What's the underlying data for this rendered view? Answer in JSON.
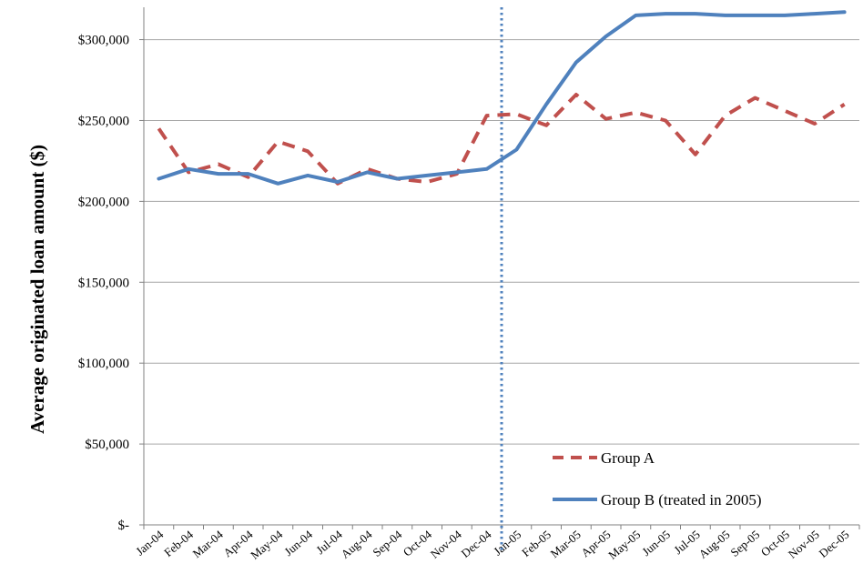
{
  "chart_data": {
    "type": "line",
    "title": "",
    "xlabel": "",
    "ylabel": "Average originated loan amount ($)",
    "categories": [
      "Jan-04",
      "Feb-04",
      "Mar-04",
      "Apr-04",
      "May-04",
      "Jun-04",
      "Jul-04",
      "Aug-04",
      "Sep-04",
      "Oct-04",
      "Nov-04",
      "Dec-04",
      "Jan-05",
      "Feb-05",
      "Mar-05",
      "Apr-05",
      "May-05",
      "Jun-05",
      "Jul-05",
      "Aug-05",
      "Sep-05",
      "Oct-05",
      "Nov-05",
      "Dec-05"
    ],
    "ylim": [
      0,
      320000
    ],
    "yticks": [
      0,
      50000,
      100000,
      150000,
      200000,
      250000,
      300000
    ],
    "ytick_labels": [
      "$-",
      "$50,000",
      "$100,000",
      "$150,000",
      "$200,000",
      "$250,000",
      "$300,000"
    ],
    "grid": "horizontal",
    "legend": "bottom-right",
    "vline_at": "Jan-05",
    "series": [
      {
        "name": "Group A",
        "style": "dashed",
        "color": "#c0504d",
        "values": [
          245000,
          218000,
          223000,
          215000,
          237000,
          231000,
          211000,
          220000,
          214000,
          212000,
          217000,
          253000,
          254000,
          247000,
          266000,
          251000,
          255000,
          250000,
          229000,
          253000,
          264000,
          256000,
          248000,
          260000
        ]
      },
      {
        "name": "Group B (treated in 2005)",
        "style": "solid",
        "color": "#4f81bd",
        "values": [
          214000,
          220000,
          217000,
          217000,
          211000,
          216000,
          212000,
          218000,
          214000,
          216000,
          218000,
          220000,
          232000,
          260000,
          286000,
          302000,
          315000,
          316000,
          316000,
          315000,
          315000,
          315000,
          316000,
          317000
        ]
      }
    ]
  }
}
